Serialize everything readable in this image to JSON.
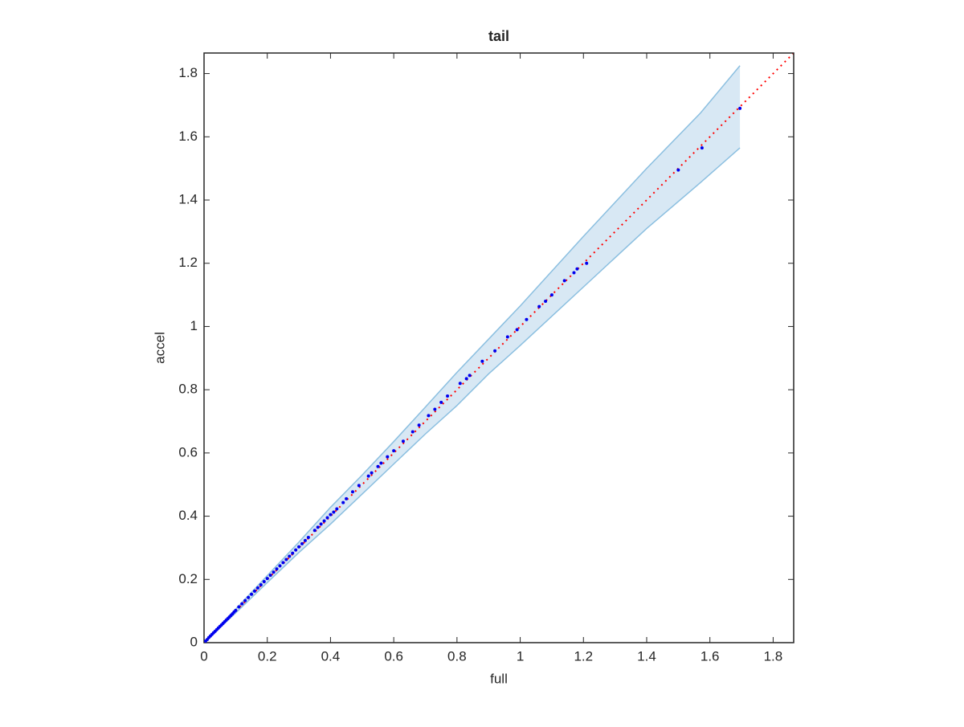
{
  "chart_data": {
    "type": "scatter",
    "title": "tail",
    "xlabel": "full",
    "ylabel": "accel",
    "xlim": [
      0,
      1.865
    ],
    "ylim": [
      0,
      1.865
    ],
    "xticks": [
      0,
      0.2,
      0.4,
      0.6,
      0.8,
      1,
      1.2,
      1.4,
      1.6,
      1.8
    ],
    "yticks": [
      0,
      0.2,
      0.4,
      0.6,
      0.8,
      1,
      1.2,
      1.4,
      1.6,
      1.8
    ],
    "band": {
      "color": "#8bbfe0",
      "fill": "#d8e8f4",
      "x": [
        0,
        0.1,
        0.2,
        0.3,
        0.4,
        0.5,
        0.6,
        0.7,
        0.8,
        0.9,
        1.0,
        1.2,
        1.4,
        1.57,
        1.695,
        1.695
      ],
      "upper": [
        0,
        0.106,
        0.212,
        0.318,
        0.428,
        0.53,
        0.636,
        0.745,
        0.855,
        0.96,
        1.065,
        1.285,
        1.5,
        1.675,
        1.825,
        1.825
      ],
      "lower": [
        0,
        0.094,
        0.19,
        0.285,
        0.375,
        0.47,
        0.565,
        0.66,
        0.75,
        0.85,
        0.94,
        1.125,
        1.31,
        1.455,
        1.565,
        1.565
      ]
    },
    "reference": {
      "color": "#ff0000",
      "x": [
        0,
        1.865
      ],
      "values": [
        0,
        1.865
      ]
    },
    "points": {
      "color": "#0000ee",
      "x": [
        0.005,
        0.01,
        0.015,
        0.02,
        0.025,
        0.03,
        0.035,
        0.04,
        0.045,
        0.05,
        0.055,
        0.06,
        0.065,
        0.07,
        0.075,
        0.08,
        0.085,
        0.09,
        0.095,
        0.1,
        0.11,
        0.12,
        0.13,
        0.14,
        0.15,
        0.16,
        0.17,
        0.18,
        0.19,
        0.2,
        0.21,
        0.22,
        0.23,
        0.24,
        0.25,
        0.26,
        0.27,
        0.28,
        0.29,
        0.3,
        0.31,
        0.32,
        0.33,
        0.35,
        0.36,
        0.37,
        0.38,
        0.39,
        0.4,
        0.41,
        0.42,
        0.44,
        0.45,
        0.47,
        0.49,
        0.52,
        0.53,
        0.55,
        0.56,
        0.58,
        0.6,
        0.63,
        0.66,
        0.68,
        0.71,
        0.73,
        0.75,
        0.77,
        0.81,
        0.83,
        0.84,
        0.88,
        0.92,
        0.96,
        0.99,
        1.02,
        1.06,
        1.08,
        1.1,
        1.14,
        1.17,
        1.18,
        1.21,
        1.5,
        1.575,
        1.695
      ],
      "values": [
        0.005,
        0.01,
        0.016,
        0.021,
        0.026,
        0.031,
        0.036,
        0.041,
        0.046,
        0.051,
        0.056,
        0.061,
        0.066,
        0.071,
        0.076,
        0.081,
        0.086,
        0.091,
        0.097,
        0.102,
        0.113,
        0.123,
        0.133,
        0.143,
        0.153,
        0.163,
        0.173,
        0.183,
        0.193,
        0.203,
        0.213,
        0.223,
        0.233,
        0.243,
        0.253,
        0.263,
        0.273,
        0.283,
        0.293,
        0.303,
        0.313,
        0.323,
        0.333,
        0.355,
        0.365,
        0.375,
        0.385,
        0.395,
        0.405,
        0.413,
        0.423,
        0.443,
        0.455,
        0.477,
        0.497,
        0.527,
        0.537,
        0.557,
        0.568,
        0.588,
        0.607,
        0.637,
        0.667,
        0.688,
        0.718,
        0.738,
        0.76,
        0.78,
        0.82,
        0.835,
        0.845,
        0.89,
        0.923,
        0.967,
        0.99,
        1.022,
        1.063,
        1.08,
        1.1,
        1.145,
        1.17,
        1.182,
        1.2,
        1.495,
        1.565,
        1.69
      ]
    }
  }
}
